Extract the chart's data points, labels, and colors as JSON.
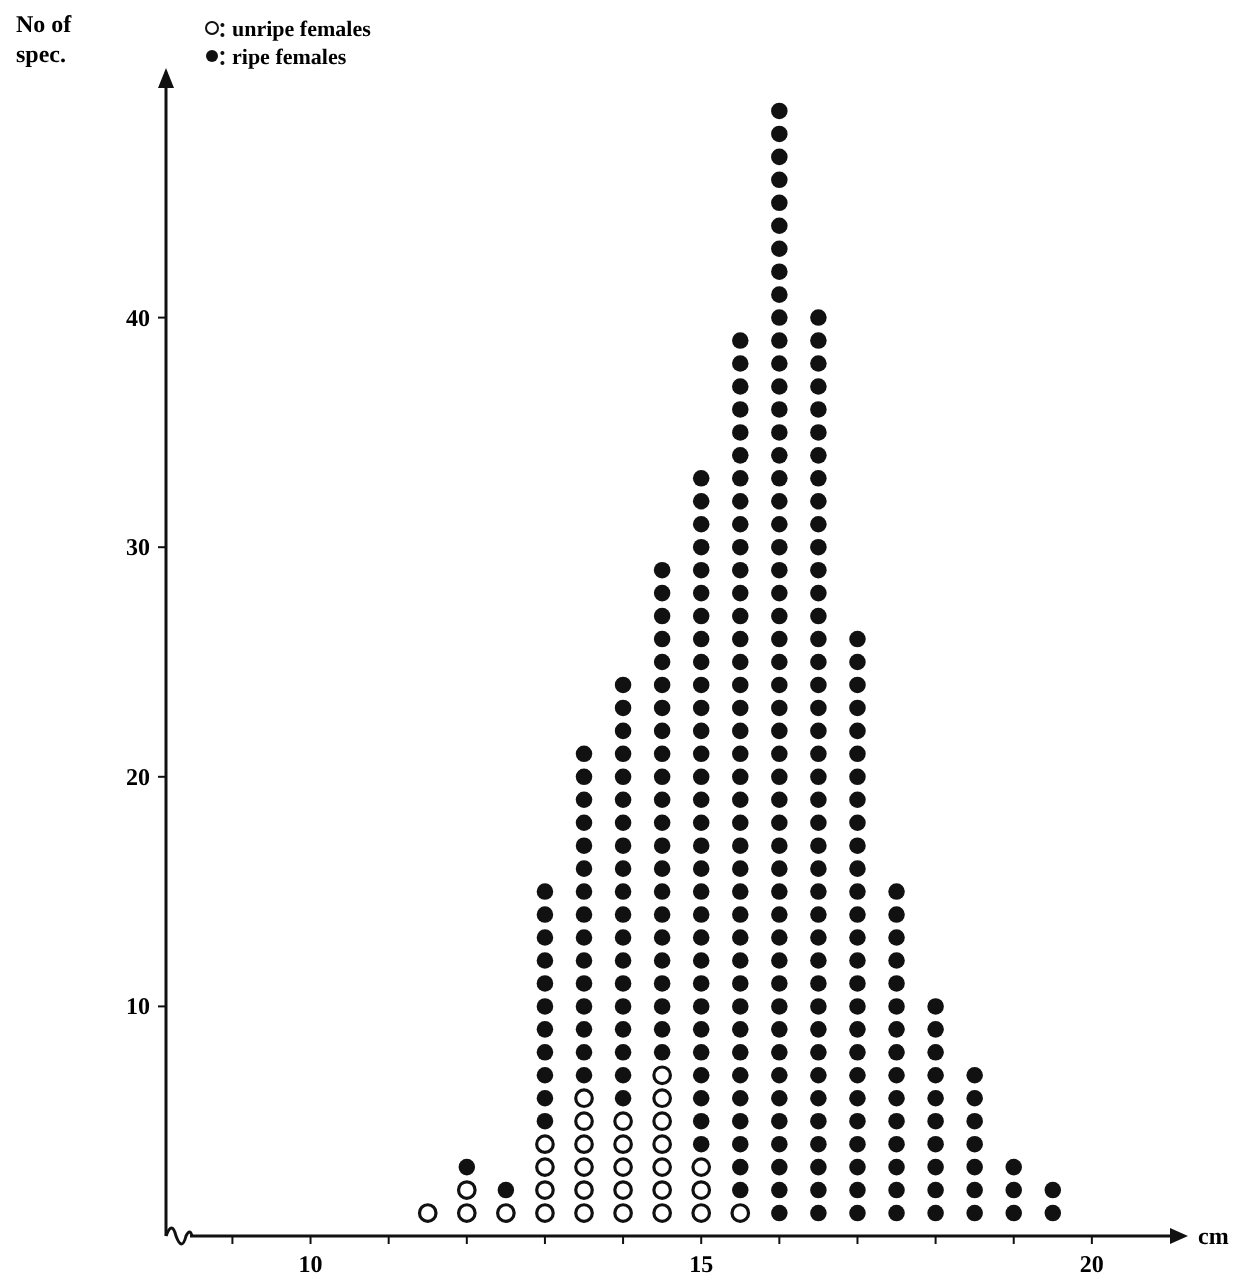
{
  "chart_data": {
    "type": "scatter",
    "xlabel": "cm",
    "ylabel": "No of spec.",
    "marker": "circle",
    "series": [
      {
        "name": "unripe females",
        "color": "#111111",
        "x": [
          11.5,
          12,
          12,
          12.5,
          13,
          13,
          13,
          13,
          13.5,
          13.5,
          13.5,
          13.5,
          13.5,
          13.5,
          14,
          14,
          14,
          14,
          14,
          14.5,
          14.5,
          14.5,
          14.5,
          14.5,
          14.5,
          14.5,
          15,
          15,
          15,
          15.5
        ],
        "values": [
          1,
          1,
          2,
          1,
          1,
          2,
          3,
          4,
          1,
          2,
          3,
          4,
          5,
          6,
          1,
          2,
          3,
          4,
          5,
          1,
          2,
          3,
          4,
          5,
          6,
          7,
          1,
          2,
          3,
          1
        ]
      },
      {
        "name": "ripe females",
        "color": "#111111",
        "x": [
          12,
          12.5,
          13,
          13,
          13,
          13,
          13,
          13,
          13,
          13,
          13,
          13,
          13,
          13.5,
          13.5,
          13.5,
          13.5,
          13.5,
          13.5,
          13.5,
          13.5,
          13.5,
          13.5,
          13.5,
          13.5,
          13.5,
          13.5,
          13.5,
          14,
          14,
          14,
          14,
          14,
          14,
          14,
          14,
          14,
          14,
          14,
          14,
          14,
          14,
          14,
          14,
          14,
          14,
          14,
          14.5,
          14.5,
          14.5,
          14.5,
          14.5,
          14.5,
          14.5,
          14.5,
          14.5,
          14.5,
          14.5,
          14.5,
          14.5,
          14.5,
          14.5,
          14.5,
          14.5,
          14.5,
          14.5,
          14.5,
          14.5,
          14.5,
          15,
          15,
          15,
          15,
          15,
          15,
          15,
          15,
          15,
          15,
          15,
          15,
          15,
          15,
          15,
          15,
          15,
          15,
          15,
          15,
          15,
          15,
          15,
          15,
          15,
          15,
          15,
          15,
          15,
          15,
          15.5,
          15.5,
          15.5,
          15.5,
          15.5,
          15.5,
          15.5,
          15.5,
          15.5,
          15.5,
          15.5,
          15.5,
          15.5,
          15.5,
          15.5,
          15.5,
          15.5,
          15.5,
          15.5,
          15.5,
          15.5,
          15.5,
          15.5,
          15.5,
          15.5,
          15.5,
          15.5,
          15.5,
          15.5,
          15.5,
          15.5,
          15.5,
          15.5,
          15.5,
          15.5,
          15.5,
          15.5,
          15.5,
          16,
          16,
          16,
          16,
          16,
          16,
          16,
          16,
          16,
          16,
          16,
          16,
          16,
          16,
          16,
          16,
          16,
          16,
          16,
          16,
          16,
          16,
          16,
          16,
          16,
          16,
          16,
          16,
          16,
          16,
          16,
          16,
          16,
          16,
          16,
          16,
          16,
          16,
          16,
          16,
          16,
          16,
          16,
          16,
          16,
          16,
          16,
          16,
          16,
          16.5,
          16.5,
          16.5,
          16.5,
          16.5,
          16.5,
          16.5,
          16.5,
          16.5,
          16.5,
          16.5,
          16.5,
          16.5,
          16.5,
          16.5,
          16.5,
          16.5,
          16.5,
          16.5,
          16.5,
          16.5,
          16.5,
          16.5,
          16.5,
          16.5,
          16.5,
          16.5,
          16.5,
          16.5,
          16.5,
          16.5,
          16.5,
          16.5,
          16.5,
          16.5,
          16.5,
          16.5,
          16.5,
          16.5,
          16.5,
          17,
          17,
          17,
          17,
          17,
          17,
          17,
          17,
          17,
          17,
          17,
          17,
          17,
          17,
          17,
          17,
          17,
          17,
          17,
          17,
          17,
          17,
          17,
          17,
          17,
          17,
          17.5,
          17.5,
          17.5,
          17.5,
          17.5,
          17.5,
          17.5,
          17.5,
          17.5,
          17.5,
          17.5,
          17.5,
          17.5,
          17.5,
          17.5,
          18,
          18,
          18,
          18,
          18,
          18,
          18,
          18,
          18,
          18,
          18.5,
          18.5,
          18.5,
          18.5,
          18.5,
          18.5,
          18.5,
          19,
          19,
          19,
          19.5,
          19.5
        ],
        "values": [
          3,
          2,
          5,
          6,
          7,
          8,
          9,
          10,
          11,
          12,
          13,
          14,
          15,
          7,
          8,
          9,
          10,
          11,
          12,
          13,
          14,
          15,
          16,
          17,
          18,
          19,
          20,
          21,
          6,
          7,
          8,
          9,
          10,
          11,
          12,
          13,
          14,
          15,
          16,
          17,
          18,
          19,
          20,
          21,
          22,
          23,
          24,
          8,
          9,
          10,
          11,
          12,
          13,
          14,
          15,
          16,
          17,
          18,
          19,
          20,
          21,
          22,
          23,
          24,
          25,
          26,
          27,
          28,
          29,
          4,
          5,
          6,
          7,
          8,
          9,
          10,
          11,
          12,
          13,
          14,
          15,
          16,
          17,
          18,
          19,
          20,
          21,
          22,
          23,
          24,
          25,
          26,
          27,
          28,
          29,
          30,
          31,
          32,
          33,
          2,
          3,
          4,
          5,
          6,
          7,
          8,
          9,
          10,
          11,
          12,
          13,
          14,
          15,
          16,
          17,
          18,
          19,
          20,
          21,
          22,
          23,
          24,
          25,
          26,
          27,
          28,
          29,
          30,
          31,
          32,
          33,
          34,
          35,
          36,
          37,
          38,
          39,
          1,
          2,
          3,
          4,
          5,
          6,
          7,
          8,
          9,
          10,
          11,
          12,
          13,
          14,
          15,
          16,
          17,
          18,
          19,
          20,
          21,
          22,
          23,
          24,
          25,
          26,
          27,
          28,
          29,
          30,
          31,
          32,
          33,
          34,
          35,
          36,
          37,
          38,
          39,
          40,
          41,
          42,
          43,
          44,
          45,
          46,
          47,
          48,
          49,
          1,
          2,
          3,
          4,
          5,
          6,
          7,
          8,
          9,
          10,
          11,
          12,
          13,
          14,
          15,
          16,
          17,
          18,
          19,
          20,
          21,
          22,
          23,
          24,
          25,
          26,
          27,
          28,
          29,
          30,
          31,
          32,
          33,
          34,
          35,
          36,
          37,
          38,
          39,
          40,
          1,
          2,
          3,
          4,
          5,
          6,
          7,
          8,
          9,
          10,
          11,
          12,
          13,
          14,
          15,
          16,
          17,
          18,
          19,
          20,
          21,
          22,
          23,
          24,
          25,
          26,
          1,
          2,
          3,
          4,
          5,
          6,
          7,
          8,
          9,
          10,
          11,
          12,
          13,
          14,
          15,
          1,
          2,
          3,
          4,
          5,
          6,
          7,
          8,
          9,
          10,
          1,
          2,
          3,
          4,
          5,
          6,
          7,
          1,
          2,
          3,
          1,
          2
        ]
      }
    ],
    "xlim": [
      8.15,
      21
    ],
    "xticks": [
      {
        "value": 9,
        "label": null
      },
      10,
      {
        "value": 11,
        "label": null
      },
      {
        "value": 12,
        "label": null
      },
      {
        "value": 13,
        "label": null
      },
      {
        "value": 14,
        "label": null
      },
      15,
      {
        "value": 16,
        "label": null
      },
      {
        "value": 17,
        "label": null
      },
      {
        "value": 18,
        "label": null
      },
      {
        "value": 19,
        "label": null
      },
      20
    ],
    "ylim": [
      0,
      50
    ],
    "yticks": [
      10,
      20,
      30,
      40
    ],
    "legend": "top left"
  }
}
